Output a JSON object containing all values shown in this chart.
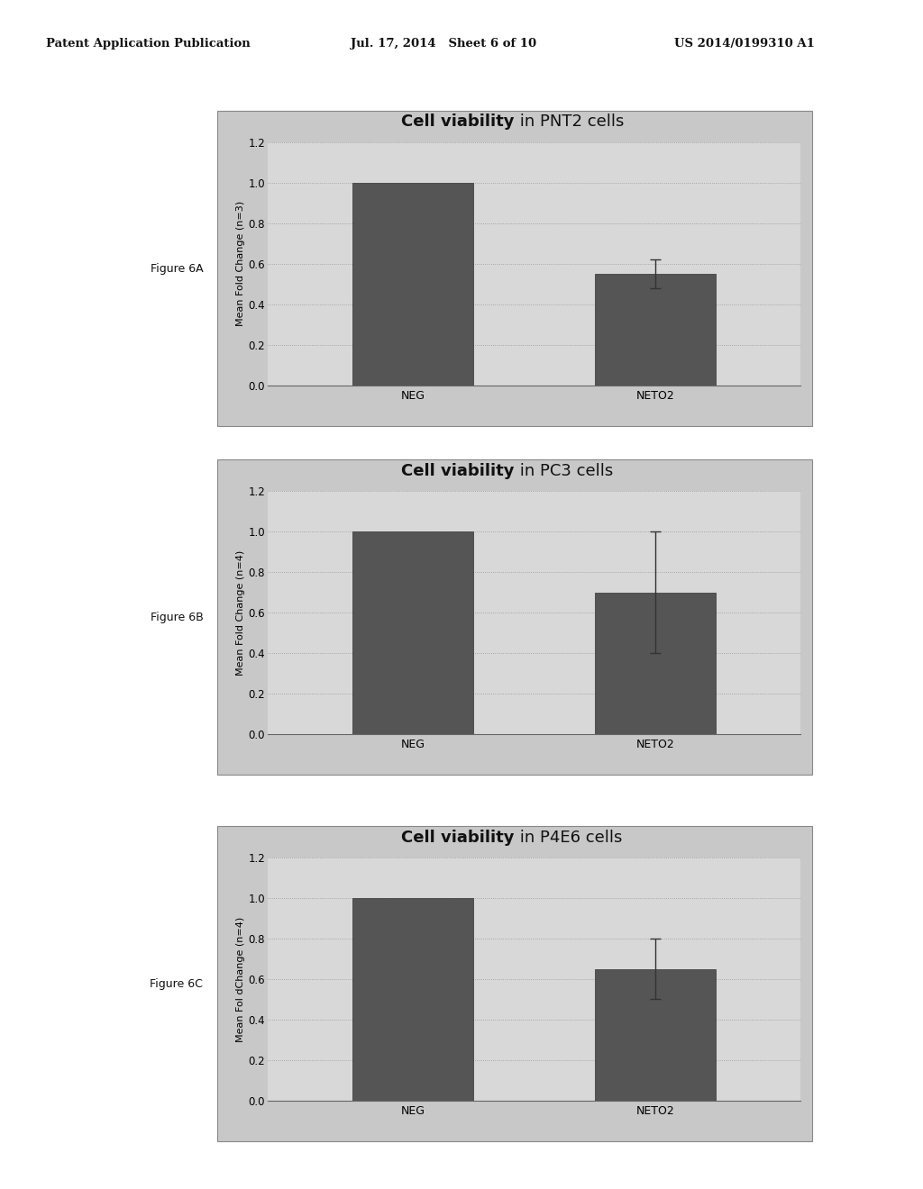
{
  "charts": [
    {
      "title_bold": "Cell viability",
      "title_normal": " in PNT2 cells",
      "ylabel": "Mean Fold Change (n=3)",
      "categories": [
        "NEG",
        "NETO2"
      ],
      "values": [
        1.0,
        0.55
      ],
      "errors": [
        0.0,
        0.07
      ],
      "ylim": [
        0,
        1.2
      ],
      "yticks": [
        0,
        0.2,
        0.4,
        0.6,
        0.8,
        1.0,
        1.2
      ],
      "figure_label": "Figure 6A"
    },
    {
      "title_bold": "Cell viability",
      "title_normal": " in PC3 cells",
      "ylabel": "Mean Fold Change (n=4)",
      "categories": [
        "NEG",
        "NETO2"
      ],
      "values": [
        1.0,
        0.7
      ],
      "errors": [
        0.0,
        0.3
      ],
      "ylim": [
        0,
        1.2
      ],
      "yticks": [
        0,
        0.2,
        0.4,
        0.6,
        0.8,
        1.0,
        1.2
      ],
      "figure_label": "Figure 6B"
    },
    {
      "title_bold": "Cell viability",
      "title_normal": " in P4E6 cells",
      "ylabel": "Mean Fol dChange (n=4)",
      "categories": [
        "NEG",
        "NETO2"
      ],
      "values": [
        1.0,
        0.65
      ],
      "errors": [
        0.0,
        0.15
      ],
      "ylim": [
        0,
        1.2
      ],
      "yticks": [
        0,
        0.2,
        0.4,
        0.6,
        0.8,
        1.0,
        1.2
      ],
      "figure_label": "Figure 6C"
    }
  ],
  "bar_color": "#555555",
  "bar_width": 0.5,
  "background_color": "#ffffff",
  "plot_bg_color": "#d8d8d8",
  "header_text_left": "Patent Application Publication",
  "header_text_mid": "Jul. 17, 2014   Sheet 6 of 10",
  "header_text_right": "US 2014/0199310 A1"
}
